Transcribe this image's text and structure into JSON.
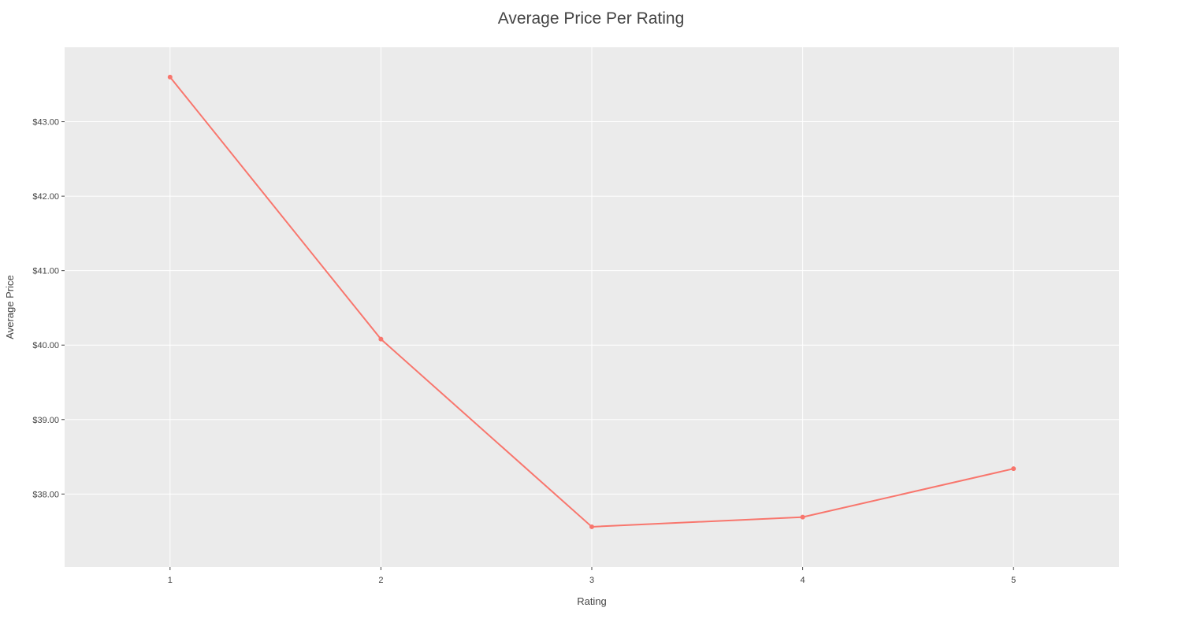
{
  "chart_data": {
    "type": "line",
    "title": "Average Price Per Rating",
    "xlabel": "Rating",
    "ylabel": "Average Price",
    "x": [
      1,
      2,
      3,
      4,
      5
    ],
    "xticks": [
      "1",
      "2",
      "3",
      "4",
      "5"
    ],
    "xlim": [
      0.5,
      5.5
    ],
    "series": [
      {
        "values": [
          43.6,
          40.08,
          37.56,
          37.69,
          38.34
        ]
      }
    ],
    "yticks": [
      38,
      39,
      40,
      41,
      42,
      43
    ],
    "ytick_labels": [
      "$38.00",
      "$39.00",
      "$40.00",
      "$41.00",
      "$42.00",
      "$43.00"
    ],
    "ylim": [
      37.02,
      44.0
    ],
    "grid": true,
    "legend": "none",
    "colors": {
      "line": "#f8766d",
      "panel": "#ebebeb",
      "grid": "#ffffff",
      "text": "#444444"
    }
  }
}
